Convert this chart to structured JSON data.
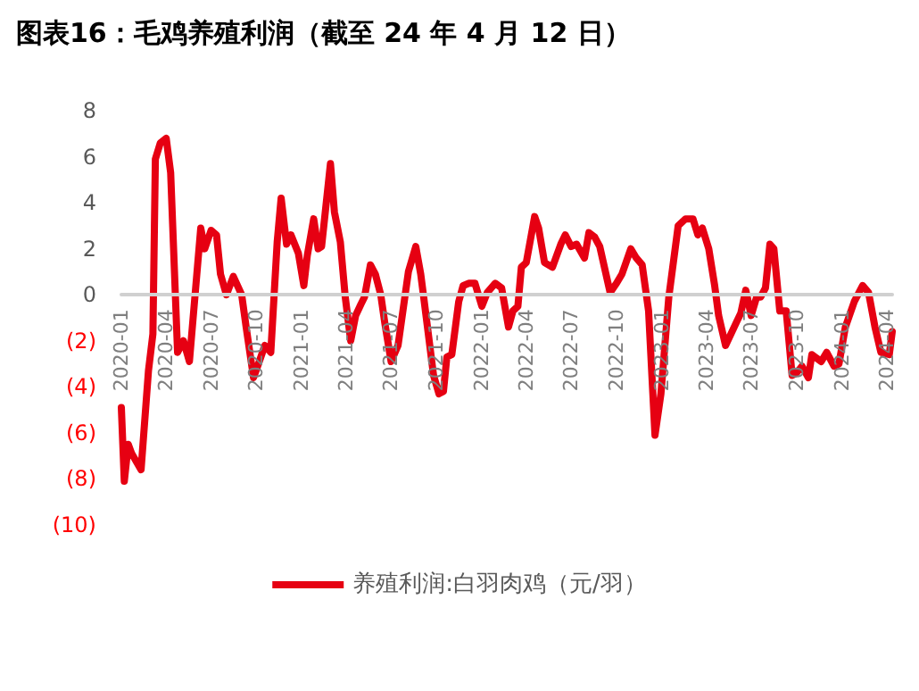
{
  "chart_data": {
    "type": "line",
    "title": "图表16：毛鸡养殖利润（截至 24 年 4 月 12 日）",
    "series": [
      {
        "name": "养殖利润:白羽肉鸡（元/羽）",
        "color": "#e60012",
        "x": [
          "2020-01-01",
          "2020-01-07",
          "2020-01-15",
          "2020-01-22",
          "2020-02-10",
          "2020-02-25",
          "2020-03-05",
          "2020-03-10",
          "2020-03-20",
          "2020-04-01",
          "2020-04-10",
          "2020-04-24",
          "2020-05-06",
          "2020-05-18",
          "2020-06-10",
          "2020-06-18",
          "2020-07-01",
          "2020-07-12",
          "2020-07-20",
          "2020-08-01",
          "2020-08-15",
          "2020-09-01",
          "2020-09-10",
          "2020-09-25",
          "2020-10-05",
          "2020-10-18",
          "2020-10-30",
          "2020-11-12",
          "2020-11-20",
          "2020-12-01",
          "2020-12-10",
          "2020-12-25",
          "2021-01-05",
          "2021-01-12",
          "2021-01-25",
          "2021-02-03",
          "2021-02-10",
          "2021-02-28",
          "2021-03-08",
          "2021-03-20",
          "2021-03-30",
          "2021-04-10",
          "2021-04-20",
          "2021-05-01",
          "2021-05-08",
          "2021-05-20",
          "2021-05-30",
          "2021-06-10",
          "2021-06-18",
          "2021-07-01",
          "2021-07-15",
          "2021-08-05",
          "2021-08-20",
          "2021-08-30",
          "2021-09-05",
          "2021-09-25",
          "2021-10-06",
          "2021-10-15",
          "2021-10-22",
          "2021-11-01",
          "2021-11-15",
          "2021-11-24",
          "2021-12-06",
          "2021-12-18",
          "2022-01-01",
          "2022-01-12",
          "2022-01-28",
          "2022-02-10",
          "2022-02-24",
          "2022-03-05",
          "2022-03-15",
          "2022-03-22",
          "2022-04-01",
          "2022-04-18",
          "2022-04-26",
          "2022-05-08",
          "2022-05-24",
          "2022-06-10",
          "2022-06-19",
          "2022-07-01",
          "2022-07-12",
          "2022-07-28",
          "2022-08-06",
          "2022-08-18",
          "2022-08-28",
          "2022-09-18",
          "2022-10-01",
          "2022-10-12",
          "2022-10-30",
          "2022-11-10",
          "2022-11-22",
          "2022-12-05",
          "2022-12-18",
          "2022-12-30",
          "2023-01-15",
          "2023-02-03",
          "2023-02-18",
          "2023-03-05",
          "2023-03-15",
          "2023-03-24",
          "2023-04-06",
          "2023-04-18",
          "2023-04-26",
          "2023-05-10",
          "2023-06-01",
          "2023-06-10",
          "2023-06-20",
          "2023-07-01",
          "2023-07-12",
          "2023-07-20",
          "2023-07-30",
          "2023-08-08",
          "2023-08-16",
          "2023-08-28",
          "2023-09-10",
          "2023-09-22",
          "2023-10-01",
          "2023-10-12",
          "2023-10-25",
          "2023-11-01",
          "2023-11-20",
          "2023-12-01",
          "2023-12-16",
          "2023-12-26",
          "2024-01-08",
          "2024-01-26",
          "2024-02-12",
          "2024-02-24",
          "2024-03-08",
          "2024-03-20",
          "2024-04-06",
          "2024-04-12"
        ],
        "values": [
          -4.9,
          -8.1,
          -6.5,
          -6.9,
          -7.6,
          -3.3,
          -1.7,
          5.9,
          6.6,
          6.8,
          5.3,
          -2.5,
          -2.0,
          -2.9,
          2.9,
          2.0,
          2.8,
          2.6,
          0.9,
          0.0,
          0.8,
          0.0,
          -1.4,
          -3.6,
          -3.0,
          -2.2,
          -2.5,
          2.3,
          4.2,
          2.2,
          2.6,
          1.8,
          0.4,
          1.7,
          3.3,
          2.0,
          2.1,
          5.7,
          3.6,
          2.3,
          -0.1,
          -2.0,
          -0.9,
          -0.4,
          -0.1,
          1.3,
          0.9,
          0.0,
          -1.2,
          -2.9,
          -2.2,
          1.0,
          2.1,
          0.9,
          -0.1,
          -3.5,
          -4.3,
          -4.2,
          -2.7,
          -2.6,
          -0.3,
          0.4,
          0.5,
          0.5,
          -0.5,
          0.1,
          0.5,
          0.3,
          -1.4,
          -0.7,
          -0.5,
          1.2,
          1.4,
          3.4,
          2.9,
          1.4,
          1.2,
          2.2,
          2.6,
          2.1,
          2.2,
          1.6,
          2.7,
          2.5,
          2.1,
          0.1,
          0.5,
          0.9,
          2.0,
          1.6,
          1.3,
          -0.7,
          -6.1,
          -4.3,
          -0.1,
          3.0,
          3.3,
          3.3,
          2.6,
          2.9,
          2.0,
          0.4,
          -0.9,
          -2.2,
          -1.2,
          -0.8,
          0.2,
          -0.9,
          -0.1,
          -0.1,
          0.3,
          2.2,
          2.0,
          -0.7,
          -0.7,
          -3.5,
          -3.4,
          -3.1,
          -3.6,
          -2.6,
          -2.9,
          -2.5,
          -3.1,
          -3.0,
          -1.4,
          -0.3,
          0.4,
          0.1,
          -1.4,
          -2.5,
          -2.6,
          -1.6
        ]
      }
    ],
    "xlim": [
      "2020-01-01",
      "2024-04-12"
    ],
    "xticks": [
      "2020-01",
      "2020-04",
      "2020-07",
      "2020-10",
      "2021-01",
      "2021-04",
      "2021-07",
      "2021-10",
      "2022-01",
      "2022-04",
      "2022-07",
      "2022-10",
      "2023-01",
      "2023-04",
      "2023-07",
      "2023-10",
      "2024-01",
      "2024-04"
    ],
    "ylim": [
      -10,
      8
    ],
    "yticks": [
      {
        "value": -10,
        "label": "(10)"
      },
      {
        "value": -8,
        "label": "(8)"
      },
      {
        "value": -6,
        "label": "(6)"
      },
      {
        "value": -4,
        "label": "(4)"
      },
      {
        "value": -2,
        "label": "(2)"
      },
      0,
      2,
      4,
      6,
      8
    ],
    "grid": false,
    "legend": "bottom",
    "marker": "none",
    "line_style": "solid"
  }
}
